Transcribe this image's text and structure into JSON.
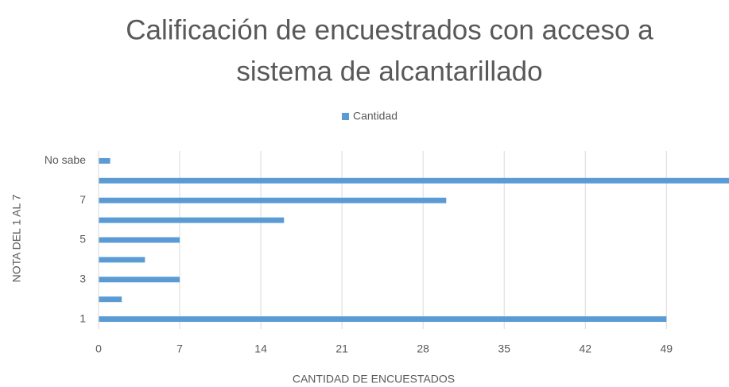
{
  "chart_data": {
    "type": "bar",
    "orientation": "horizontal",
    "title": [
      "Calificación de encuestrados con acceso a",
      "sistema de alcantarillado"
    ],
    "x_label": "CANTIDAD DE ENCUESTADOS",
    "y_label": "NOTA DEL 1 AL 7",
    "categories": [
      "1",
      null,
      "3",
      null,
      "5",
      null,
      "7",
      null,
      "No sabe"
    ],
    "series": [
      {
        "name": "Cantidad",
        "color": "#5b9bd5",
        "values": [
          49,
          2,
          7,
          4,
          7,
          16,
          30,
          55,
          1
        ]
      }
    ],
    "xlim": [
      0,
      54.4
    ],
    "xticks": [
      0,
      7,
      14,
      21,
      28,
      35,
      42,
      49
    ],
    "grid": true,
    "legend": "top"
  }
}
